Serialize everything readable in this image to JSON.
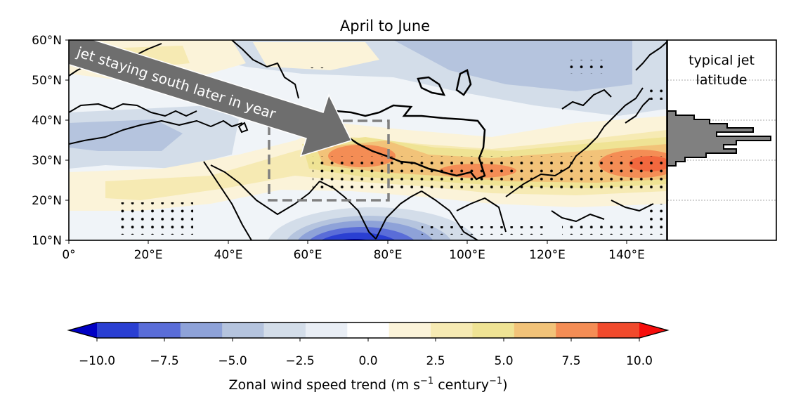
{
  "title": "April to June",
  "map": {
    "lat_ticks": [
      "60°N",
      "50°N",
      "40°N",
      "30°N",
      "20°N",
      "10°N"
    ],
    "lon_ticks": [
      "0°",
      "20°E",
      "40°E",
      "60°E",
      "80°E",
      "100°E",
      "120°E",
      "140°E"
    ],
    "arrow_label": "jet staying south later in year",
    "stippling": "significant trend"
  },
  "histogram": {
    "title_line1": "typical jet",
    "title_line2": "latitude",
    "bar_color": "#808080"
  },
  "colorbar": {
    "ticks": [
      "−10.0",
      "−7.5",
      "−5.0",
      "−2.5",
      "0.0",
      "2.5",
      "5.0",
      "7.5",
      "10.0"
    ],
    "label": "Zonal wind speed trend (m s",
    "label_exp1": "−1",
    "label_mid": " century",
    "label_exp2": "−1",
    "label_end": ")",
    "colors": [
      "#0000c4",
      "#2a3fd2",
      "#5a6dd8",
      "#8ea2d8",
      "#b5c4de",
      "#d3dde9",
      "#e9eef5",
      "#ffffff",
      "#fbf3d9",
      "#f6eab3",
      "#efe394",
      "#f2c379",
      "#f48d55",
      "#f04a2c",
      "#f60d0b"
    ]
  }
}
